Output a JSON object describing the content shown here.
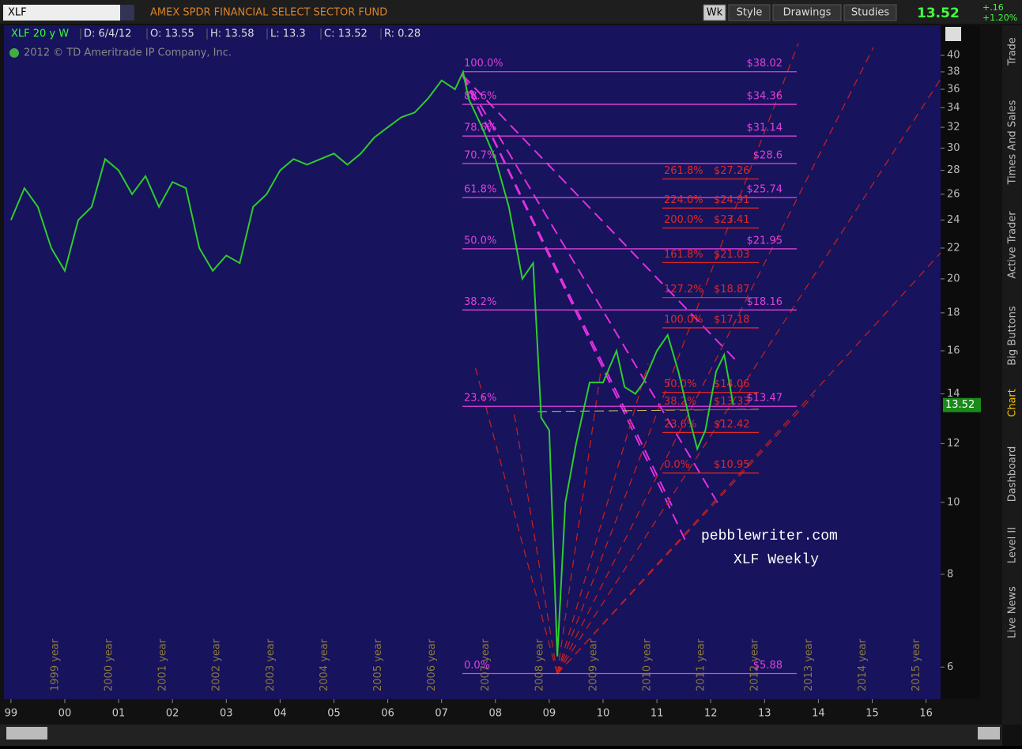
{
  "header": {
    "symbol": "XLF",
    "description": "AMEX SPDR FINANCIAL SELECT SECTOR FUND",
    "buttons": [
      "Wk",
      "Style",
      "Drawings",
      "Studies"
    ],
    "last": "13.52",
    "change": "+.16",
    "change_pct": "+1.20%"
  },
  "info_bar": {
    "symbol": "XLF 20 y W",
    "items": [
      "D: 6/4/12",
      "O: 13.55",
      "H: 13.58",
      "L: 13.3",
      "C: 13.52",
      "R: 0.28"
    ]
  },
  "copyright": "2012 © TD Ameritrade IP Company, Inc.",
  "side_tabs": [
    "Trade",
    "Times And Sales",
    "Active Trader",
    "Big Buttons",
    "Chart",
    "Dashboard",
    "Level II",
    "Live News"
  ],
  "watermark": [
    "pebblewriter.com",
    "XLF Weekly"
  ],
  "chart_data": {
    "type": "line",
    "log_scale": true,
    "color": "#2ecc2e",
    "x": [
      1999.0,
      1999.25,
      1999.5,
      1999.75,
      2000.0,
      2000.25,
      2000.5,
      2000.75,
      2001.0,
      2001.25,
      2001.5,
      2001.75,
      2002.0,
      2002.25,
      2002.5,
      2002.75,
      2003.0,
      2003.25,
      2003.5,
      2003.75,
      2004.0,
      2004.25,
      2004.5,
      2004.75,
      2005.0,
      2005.25,
      2005.5,
      2005.75,
      2006.0,
      2006.25,
      2006.5,
      2006.75,
      2007.0,
      2007.25,
      2007.4,
      2007.5,
      2007.75,
      2008.0,
      2008.25,
      2008.5,
      2008.7,
      2008.85,
      2009.0,
      2009.15,
      2009.3,
      2009.5,
      2009.75,
      2010.0,
      2010.25,
      2010.4,
      2010.6,
      2010.75,
      2011.0,
      2011.2,
      2011.4,
      2011.6,
      2011.75,
      2011.9,
      2012.1,
      2012.25,
      2012.42
    ],
    "values": [
      24,
      26.5,
      25,
      22,
      20.5,
      24,
      25,
      29,
      28,
      26,
      27.5,
      25,
      27,
      26.5,
      22,
      20.5,
      21.5,
      21,
      25,
      26,
      28,
      29,
      28.5,
      29,
      29.5,
      28.5,
      29.5,
      31,
      32,
      33,
      33.5,
      35,
      37,
      36,
      38,
      35,
      32,
      29,
      25,
      20,
      21,
      13,
      12.5,
      6.2,
      10,
      12,
      14.5,
      14.5,
      16,
      14.3,
      14,
      14.5,
      16,
      16.8,
      15,
      13,
      11.8,
      12.5,
      15,
      15.8,
      13.52
    ],
    "last_price": 13.52,
    "xlim": [
      1998.87,
      2016.27
    ],
    "xticks": [
      {
        "value": 1999,
        "label": "99"
      },
      {
        "value": 2000,
        "label": "00"
      },
      {
        "value": 2001,
        "label": "01"
      },
      {
        "value": 2002,
        "label": "02"
      },
      {
        "value": 2003,
        "label": "03"
      },
      {
        "value": 2004,
        "label": "04"
      },
      {
        "value": 2005,
        "label": "05"
      },
      {
        "value": 2006,
        "label": "06"
      },
      {
        "value": 2007,
        "label": "07"
      },
      {
        "value": 2008,
        "label": "08"
      },
      {
        "value": 2009,
        "label": "09"
      },
      {
        "value": 2010,
        "label": "10"
      },
      {
        "value": 2011,
        "label": "11"
      },
      {
        "value": 2012,
        "label": "12"
      },
      {
        "value": 2013,
        "label": "13"
      },
      {
        "value": 2014,
        "label": "14"
      },
      {
        "value": 2015,
        "label": "15"
      },
      {
        "value": 2016,
        "label": "16"
      }
    ],
    "year_labels": [
      "1999 year",
      "2000 year",
      "2001 year",
      "2002 year",
      "2003 year",
      "2004 year",
      "2005 year",
      "2006 year",
      "2007 year",
      "2008 year",
      "2009 year",
      "2010 year",
      "2011 year",
      "2012 year",
      "2013 year",
      "2014 year",
      "2015 year"
    ],
    "ylim": [
      5.43,
      41.5
    ],
    "yticks": [
      6,
      8,
      10,
      12,
      14,
      16,
      18,
      20,
      22,
      24,
      26,
      28,
      30,
      32,
      34,
      36,
      38,
      40
    ],
    "fib_levels": [
      {
        "value": 38.02,
        "label": "100.0%",
        "price_label": "$38.02"
      },
      {
        "value": 34.36,
        "label": "88.6%",
        "price_label": "$34.36"
      },
      {
        "value": 31.14,
        "label": "78.6%",
        "price_label": "$31.14"
      },
      {
        "value": 28.6,
        "label": "70.7%",
        "price_label": "$28.6"
      },
      {
        "value": 25.74,
        "label": "61.8%",
        "price_label": "$25.74"
      },
      {
        "value": 21.95,
        "label": "50.0%",
        "price_label": "$21.95"
      },
      {
        "value": 18.16,
        "label": "38.2%",
        "price_label": "$18.16"
      },
      {
        "value": 13.47,
        "label": "23.6%",
        "price_label": "$13.47"
      },
      {
        "value": 5.88,
        "label": "0.0%",
        "price_label": "$5.88"
      }
    ],
    "fib_extensions": [
      {
        "value": 27.26,
        "label": "261.8%",
        "price_label": "$27.26"
      },
      {
        "value": 24.91,
        "label": "224.0%",
        "price_label": "$24.91"
      },
      {
        "value": 23.41,
        "label": "200.0%",
        "price_label": "$23.41"
      },
      {
        "value": 21.03,
        "label": "161.8%",
        "price_label": "$21.03"
      },
      {
        "value": 18.87,
        "label": "127.2%",
        "price_label": "$18.87"
      },
      {
        "value": 17.18,
        "label": "100.0%",
        "price_label": "$17.18"
      },
      {
        "value": 14.06,
        "label": "50.0%",
        "price_label": "$14.06"
      },
      {
        "value": 13.33,
        "label": "38.2%",
        "price_label": "$13.33"
      },
      {
        "value": 12.42,
        "label": "23.6%",
        "price_label": "$12.42"
      },
      {
        "value": 10.95,
        "label": "0.0%",
        "price_label": "$10.95"
      }
    ]
  }
}
